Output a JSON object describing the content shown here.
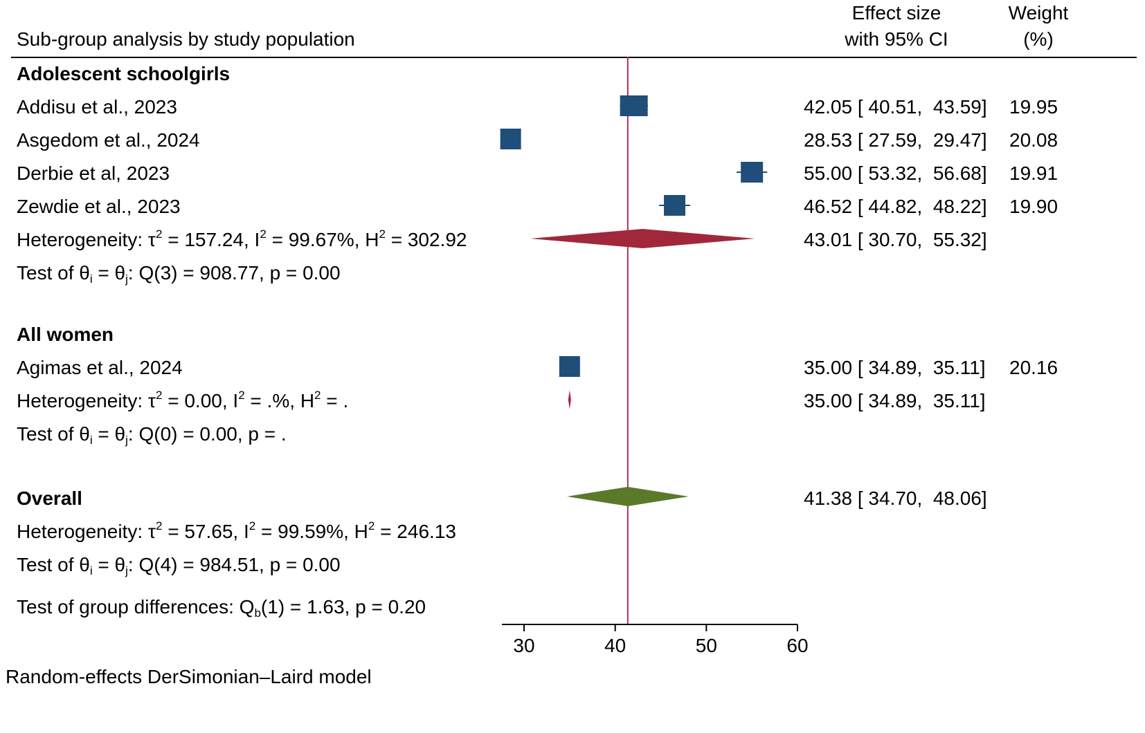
{
  "chart_data": {
    "type": "forest",
    "title": "Sub-group analysis by study population",
    "column_headers": {
      "effect_line1": "Effect size",
      "effect_line2": "with 95% CI",
      "weight_line1": "Weight",
      "weight_line2": "(%)"
    },
    "reference_line": 41.38,
    "xlim": [
      28,
      60
    ],
    "xticks": [
      30,
      40,
      50,
      60
    ],
    "groups": [
      {
        "name": "Adolescent schoolgirls",
        "studies": [
          {
            "label": "Addisu et al., 2023",
            "es": 42.05,
            "lo": 40.51,
            "hi": 43.59,
            "ci_text": "42.05 [ 40.51,  43.59]",
            "weight": "19.95"
          },
          {
            "label": "Asgedom et al., 2024",
            "es": 28.53,
            "lo": 27.59,
            "hi": 29.47,
            "ci_text": "28.53 [ 27.59,  29.47]",
            "weight": "20.08"
          },
          {
            "label": "Derbie et al, 2023",
            "es": 55.0,
            "lo": 53.32,
            "hi": 56.68,
            "ci_text": "55.00 [ 53.32,  56.68]",
            "weight": "19.91"
          },
          {
            "label": "Zewdie et al., 2023",
            "es": 46.52,
            "lo": 44.82,
            "hi": 48.22,
            "ci_text": "46.52 [ 44.82,  48.22]",
            "weight": "19.90"
          }
        ],
        "pooled": {
          "es": 43.01,
          "lo": 30.7,
          "hi": 55.32,
          "ci_text": "43.01 [ 30.70,  55.32]"
        },
        "het": {
          "tau2": "157.24",
          "i2": "99.67%",
          "h2": "302.92"
        },
        "test": {
          "df": "3",
          "q": "908.77",
          "p": "0.00"
        }
      },
      {
        "name": "All women",
        "studies": [
          {
            "label": "Agimas et al., 2024",
            "es": 35.0,
            "lo": 34.89,
            "hi": 35.11,
            "ci_text": "35.00 [ 34.89,  35.11]",
            "weight": "20.16"
          }
        ],
        "pooled": {
          "es": 35.0,
          "lo": 34.89,
          "hi": 35.11,
          "ci_text": "35.00 [ 34.89,  35.11]"
        },
        "het": {
          "tau2": "0.00",
          "i2": ".%",
          "h2": "."
        },
        "test": {
          "df": "0",
          "q": "0.00",
          "p": "."
        }
      }
    ],
    "overall": {
      "label": "Overall",
      "es": 41.38,
      "lo": 34.7,
      "hi": 48.06,
      "ci_text": "41.38 [ 34.70,  48.06]",
      "het": {
        "tau2": "57.65",
        "i2": "99.59%",
        "h2": "246.13"
      },
      "test": {
        "df": "4",
        "q": "984.51",
        "p": "0.00"
      }
    },
    "group_test": {
      "df": "1",
      "q": "1.63",
      "p": "0.20"
    },
    "footnote": "Random-effects DerSimonian–Laird model",
    "colors": {
      "study_marker": "#1f4e79",
      "subgroup_diamond": "#a0283a",
      "overall_diamond": "#5a7a2a",
      "reference_line": "#b03050",
      "axis": "#000000"
    }
  }
}
